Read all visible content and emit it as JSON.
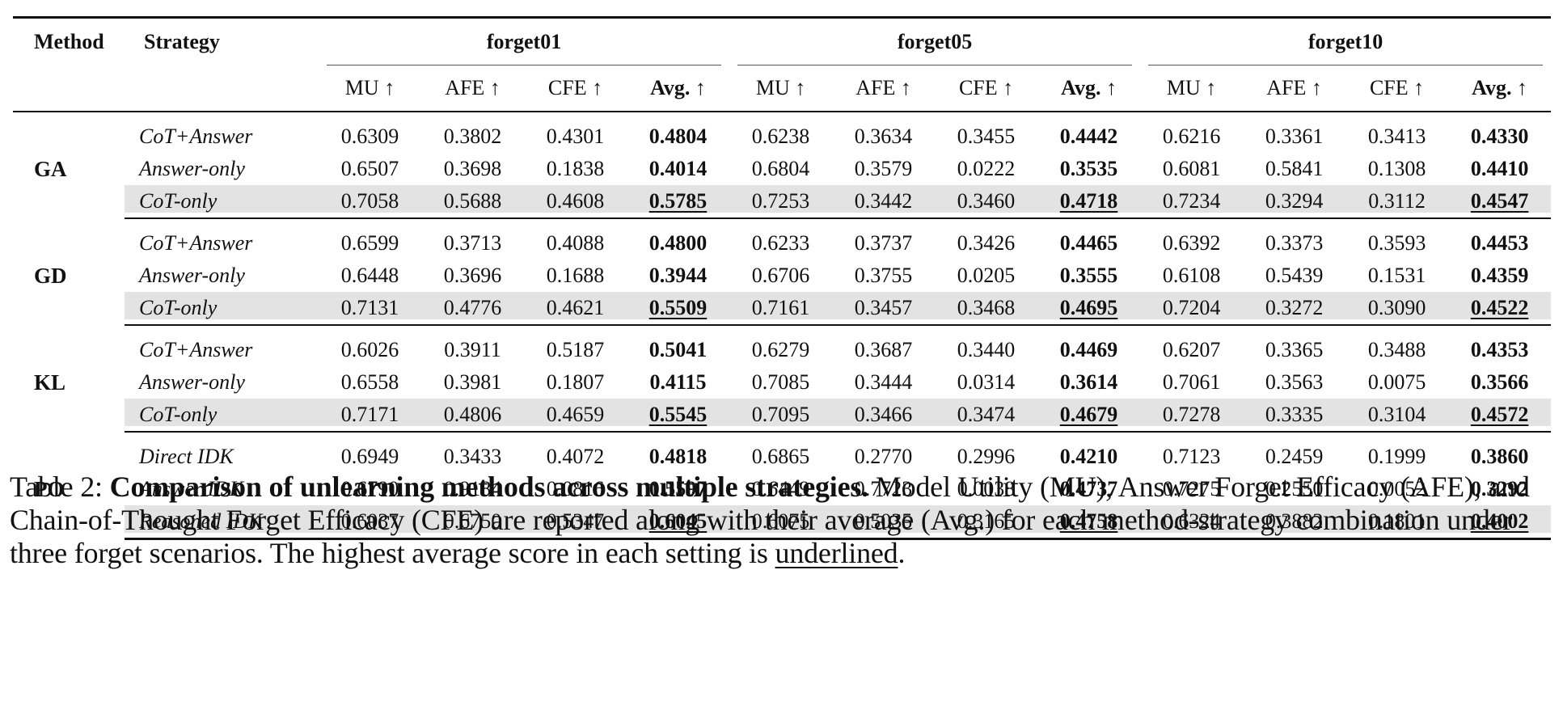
{
  "header": {
    "method": "Method",
    "strategy": "Strategy",
    "groups": [
      "forget01",
      "forget05",
      "forget10"
    ],
    "metrics": [
      "MU ↑",
      "AFE ↑",
      "CFE ↑",
      "Avg. ↑"
    ]
  },
  "rows": [
    {
      "method": "GA",
      "strategies": [
        {
          "name": "CoT+Answer",
          "values": [
            "0.6309",
            "0.3802",
            "0.4301",
            "0.4804",
            "0.6238",
            "0.3634",
            "0.3455",
            "0.4442",
            "0.6216",
            "0.3361",
            "0.3413",
            "0.4330"
          ]
        },
        {
          "name": "Answer-only",
          "values": [
            "0.6507",
            "0.3698",
            "0.1838",
            "0.4014",
            "0.6804",
            "0.3579",
            "0.0222",
            "0.3535",
            "0.6081",
            "0.5841",
            "0.1308",
            "0.4410"
          ]
        },
        {
          "name": "CoT-only",
          "values": [
            "0.7058",
            "0.5688",
            "0.4608",
            "0.5785",
            "0.7253",
            "0.3442",
            "0.3460",
            "0.4718",
            "0.7234",
            "0.3294",
            "0.3112",
            "0.4547"
          ]
        }
      ]
    },
    {
      "method": "GD",
      "strategies": [
        {
          "name": "CoT+Answer",
          "values": [
            "0.6599",
            "0.3713",
            "0.4088",
            "0.4800",
            "0.6233",
            "0.3737",
            "0.3426",
            "0.4465",
            "0.6392",
            "0.3373",
            "0.3593",
            "0.4453"
          ]
        },
        {
          "name": "Answer-only",
          "values": [
            "0.6448",
            "0.3696",
            "0.1688",
            "0.3944",
            "0.6706",
            "0.3755",
            "0.0205",
            "0.3555",
            "0.6108",
            "0.5439",
            "0.1531",
            "0.4359"
          ]
        },
        {
          "name": "CoT-only",
          "values": [
            "0.7131",
            "0.4776",
            "0.4621",
            "0.5509",
            "0.7161",
            "0.3457",
            "0.3468",
            "0.4695",
            "0.7204",
            "0.3272",
            "0.3090",
            "0.4522"
          ]
        }
      ]
    },
    {
      "method": "KL",
      "strategies": [
        {
          "name": "CoT+Answer",
          "values": [
            "0.6026",
            "0.3911",
            "0.5187",
            "0.5041",
            "0.6279",
            "0.3687",
            "0.3440",
            "0.4469",
            "0.6207",
            "0.3365",
            "0.3488",
            "0.4353"
          ]
        },
        {
          "name": "Answer-only",
          "values": [
            "0.6558",
            "0.3981",
            "0.1807",
            "0.4115",
            "0.7085",
            "0.3444",
            "0.0314",
            "0.3614",
            "0.7061",
            "0.3563",
            "0.0075",
            "0.3566"
          ]
        },
        {
          "name": "CoT-only",
          "values": [
            "0.7171",
            "0.4806",
            "0.4659",
            "0.5545",
            "0.7095",
            "0.3466",
            "0.3474",
            "0.4679",
            "0.7278",
            "0.3335",
            "0.3104",
            "0.4572"
          ]
        }
      ]
    },
    {
      "method": "PO",
      "strategies": [
        {
          "name": "Direct IDK",
          "values": [
            "0.6949",
            "0.3433",
            "0.4072",
            "0.4818",
            "0.6865",
            "0.2770",
            "0.2996",
            "0.4210",
            "0.7123",
            "0.2459",
            "0.1999",
            "0.3860"
          ]
        },
        {
          "name": "Answer IDK",
          "values": [
            "0.6790",
            "0.9184",
            "0.0816",
            "0.5597",
            "0.6449",
            "0.7723",
            "0.0038",
            "0.4737",
            "0.7275",
            "0.2550",
            "0.0052",
            "0.3292"
          ]
        },
        {
          "name": "Reasoned IDK",
          "values": [
            "0.6037",
            "0.6750",
            "0.5347",
            "0.6045",
            "0.6075",
            "0.5035",
            "0.3165",
            "0.4758",
            "0.6324",
            "0.3882",
            "0.1801",
            "0.4002"
          ]
        }
      ]
    }
  ],
  "caption": {
    "label": "Table 2: ",
    "title": "Comparison of unlearning methods across multiple strategies.",
    "body": " Model Utility (MU), Answer Forget Efficacy (AFE), and Chain-of-Thought Forget Efficacy (CFE) are reported along with their average (Avg.) for each method-strategy combination under three forget scenarios. The highest average score in each setting is ",
    "underlined": "underlined",
    "end": "."
  },
  "colors": {
    "highlight_row": "#e3e3e3",
    "rule": "#111111"
  }
}
